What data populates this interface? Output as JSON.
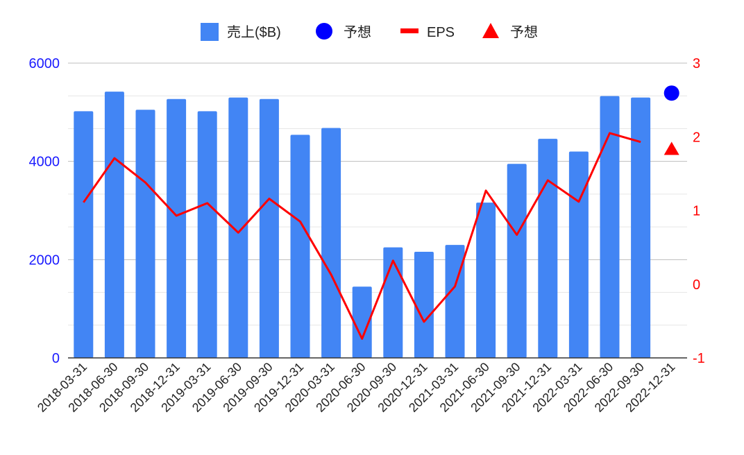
{
  "chart_data": {
    "type": "bar",
    "categories": [
      "2018-03-31",
      "2018-06-30",
      "2018-09-30",
      "2018-12-31",
      "2019-03-31",
      "2019-06-30",
      "2019-09-30",
      "2019-12-31",
      "2020-03-31",
      "2020-06-30",
      "2020-09-30",
      "2020-12-31",
      "2021-03-31",
      "2021-06-30",
      "2021-09-30",
      "2021-12-31",
      "2022-03-31",
      "2022-06-30",
      "2022-09-30",
      "2022-12-31"
    ],
    "series": [
      {
        "name": "売上($B)",
        "kind": "bar",
        "axis": "left",
        "color": "#4285f4",
        "values": [
          5020,
          5420,
          5050,
          5270,
          5020,
          5300,
          5270,
          4540,
          4680,
          1450,
          2250,
          2160,
          2300,
          3160,
          3950,
          4460,
          4200,
          5330,
          5300,
          null
        ]
      },
      {
        "name": "予想",
        "kind": "circle",
        "axis": "left",
        "color": "#0000ff",
        "values": [
          null,
          null,
          null,
          null,
          null,
          null,
          null,
          null,
          null,
          null,
          null,
          null,
          null,
          null,
          null,
          null,
          null,
          null,
          null,
          5390
        ]
      },
      {
        "name": "EPS",
        "kind": "line",
        "axis": "right",
        "color": "#ff0000",
        "values": [
          1.11,
          1.71,
          1.38,
          0.93,
          1.1,
          0.7,
          1.16,
          0.85,
          0.13,
          -0.74,
          0.32,
          -0.51,
          -0.03,
          1.27,
          0.67,
          1.41,
          1.12,
          2.05,
          1.93,
          null
        ]
      },
      {
        "name": "予想",
        "kind": "triangle",
        "axis": "right",
        "color": "#ff0000",
        "values": [
          null,
          null,
          null,
          null,
          null,
          null,
          null,
          null,
          null,
          null,
          null,
          null,
          null,
          null,
          null,
          null,
          null,
          null,
          null,
          1.83
        ]
      }
    ],
    "left_axis": {
      "min": 0,
      "max": 6000,
      "ticks": [
        "0",
        "2000",
        "4000",
        "6000"
      ],
      "color": "#1a1aff"
    },
    "right_axis": {
      "min": -1,
      "max": 3,
      "ticks": [
        "-1",
        "0",
        "1",
        "2",
        "3"
      ],
      "color": "#ff0000"
    },
    "grid": true,
    "legend_position": "top"
  }
}
